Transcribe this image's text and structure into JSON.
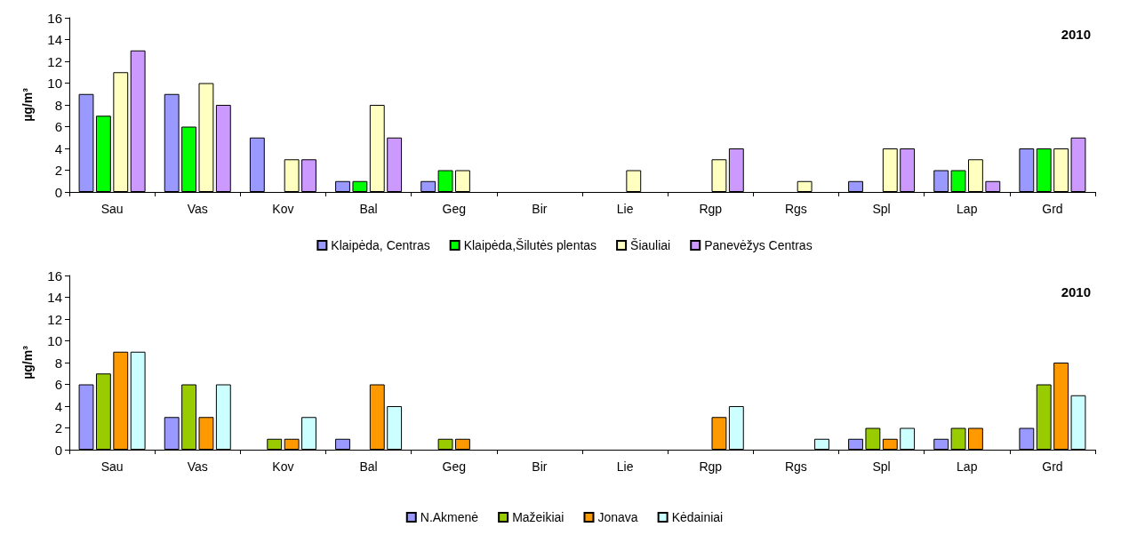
{
  "chart_data": [
    {
      "type": "bar",
      "title": "2010",
      "ylabel": "µg/m³",
      "categories": [
        "Sau",
        "Vas",
        "Kov",
        "Bal",
        "Geg",
        "Bir",
        "Lie",
        "Rgp",
        "Rgs",
        "Spl",
        "Lap",
        "Grd"
      ],
      "ylim": [
        0,
        16
      ],
      "yticks": [
        0,
        2,
        4,
        6,
        8,
        10,
        12,
        14,
        16
      ],
      "grid": false,
      "legend": "bottom",
      "series": [
        {
          "name": "Klaipėda, Centras",
          "color": "#9999ff",
          "values": [
            9,
            9,
            5,
            1,
            1,
            null,
            null,
            null,
            null,
            1,
            2,
            4
          ]
        },
        {
          "name": "Klaipėda,Šilutės plentas",
          "color": "#00ff00",
          "values": [
            7,
            6,
            null,
            1,
            2,
            null,
            null,
            null,
            null,
            null,
            2,
            4
          ]
        },
        {
          "name": "Šiauliai",
          "color": "#ffffc0",
          "values": [
            11,
            10,
            3,
            8,
            2,
            null,
            2,
            3,
            1,
            4,
            3,
            4
          ]
        },
        {
          "name": "Panevėžys Centras",
          "color": "#cc99ff",
          "values": [
            13,
            8,
            3,
            5,
            null,
            null,
            null,
            4,
            null,
            4,
            1,
            5
          ]
        }
      ]
    },
    {
      "type": "bar",
      "title": "2010",
      "ylabel": "µg/m³",
      "categories": [
        "Sau",
        "Vas",
        "Kov",
        "Bal",
        "Geg",
        "Bir",
        "Lie",
        "Rgp",
        "Rgs",
        "Spl",
        "Lap",
        "Grd"
      ],
      "ylim": [
        0,
        16
      ],
      "yticks": [
        0,
        2,
        4,
        6,
        8,
        10,
        12,
        14,
        16
      ],
      "grid": false,
      "legend": "bottom",
      "series": [
        {
          "name": "N.Akmenė",
          "color": "#9999ff",
          "values": [
            6,
            3,
            null,
            1,
            null,
            null,
            null,
            null,
            null,
            1,
            1,
            2
          ]
        },
        {
          "name": "Mažeikiai",
          "color": "#99cc00",
          "values": [
            7,
            6,
            1,
            null,
            1,
            null,
            null,
            null,
            null,
            2,
            2,
            6
          ]
        },
        {
          "name": "Jonava",
          "color": "#ff9900",
          "values": [
            9,
            3,
            1,
            6,
            1,
            null,
            null,
            3,
            null,
            1,
            2,
            8
          ]
        },
        {
          "name": "Kėdainiai",
          "color": "#ccffff",
          "values": [
            9,
            6,
            3,
            4,
            null,
            null,
            null,
            4,
            1,
            2,
            null,
            5
          ]
        }
      ]
    }
  ]
}
